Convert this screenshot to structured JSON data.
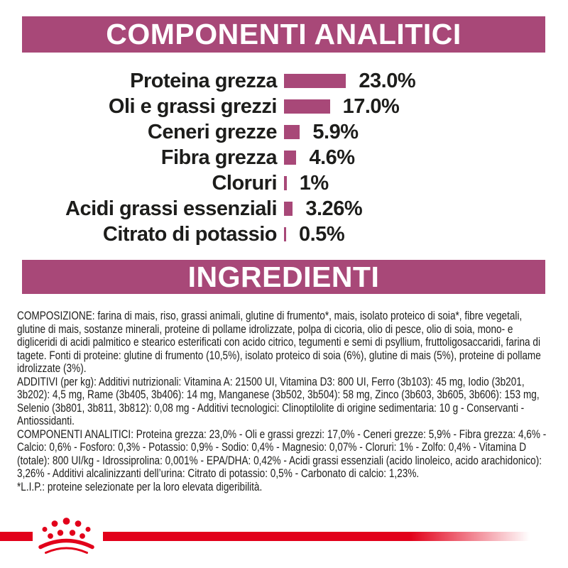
{
  "theme": {
    "accent": "#a84878",
    "brand_red": "#e2001a",
    "text_color": "#1d1d1b",
    "header_text_color": "#ffffff"
  },
  "sections": {
    "analytical_header": "COMPONENTI ANALITICI",
    "ingredients_header": "INGREDIENTI"
  },
  "chart_data": {
    "type": "bar",
    "orientation": "horizontal",
    "title": "COMPONENTI ANALITICI",
    "categories": [
      "Proteina grezza",
      "Oli e grassi grezzi",
      "Ceneri grezze",
      "Fibra grezza",
      "Cloruri",
      "Acidi grassi essenziali",
      "Citrato di potassio"
    ],
    "values": [
      23.0,
      17.0,
      5.9,
      4.6,
      1,
      3.26,
      0.5
    ],
    "value_labels": [
      "23.0%",
      "17.0%",
      "5.9%",
      "4.6%",
      "1%",
      "3.26%",
      "0.5%"
    ],
    "unit": "%",
    "xlim": [
      0,
      25
    ],
    "bar_color": "#a84878",
    "grid": false,
    "legend": "none"
  },
  "ingredients": {
    "paragraphs": [
      "COMPOSIZIONE: farina di mais, riso, grassi animali, glutine di frumento*, mais, isolato proteico di soia*, fibre vegetali, glutine di mais, sostanze minerali, proteine di pollame idrolizzate, polpa di cicoria, olio di pesce, olio di soia, mono- e digliceridi di acidi palmitico e stearico esterificati con acido citrico, tegumenti e semi di psyllium, fruttoligosaccaridi, farina di tagete. Fonti di proteine: glutine di frumento (10,5%), isolato proteico di soia (6%), glutine di mais (5%), proteine di pollame idrolizzate (3%).",
      "ADDITIVI (per kg): Additivi nutrizionali: Vitamina A: 21500 UI, Vitamina D3: 800 UI, Ferro (3b103): 45 mg, Iodio (3b201, 3b202): 4,5 mg, Rame (3b405, 3b406): 14 mg, Manganese (3b502, 3b504): 58 mg, Zinco (3b603, 3b605, 3b606): 153 mg, Selenio (3b801, 3b811, 3b812): 0,08 mg - Additivi tecnologici: Clinoptilolite di origine sedimentaria: 10 g - Conservanti - Antiossidanti.",
      "COMPONENTI ANALITICI: Proteina grezza: 23,0% - Oli e grassi grezzi: 17,0% - Ceneri grezze: 5,9% - Fibra grezza: 4,6% - Calcio: 0,6% - Fosforo: 0,3% - Potassio: 0,9% - Sodio: 0,4% - Magnesio: 0,07% - Cloruri: 1% - Zolfo: 0,4% - Vitamina D (totale): 800 UI/kg - Idrossiprolina: 0,001% - EPA/DHA: 0,42% - Acidi grassi essenziali (acido linoleico, acido arachidonico): 3,26% - Additivi alcalinizzanti dell’urina: Citrato di potassio: 0,5% - Carbonato di calcio: 1,23%."
    ],
    "footnote": "*L.I.P.: proteine selezionate per la loro elevata digeribilità."
  },
  "footer": {
    "logo_icon": "royal-canin-crown-icon"
  }
}
